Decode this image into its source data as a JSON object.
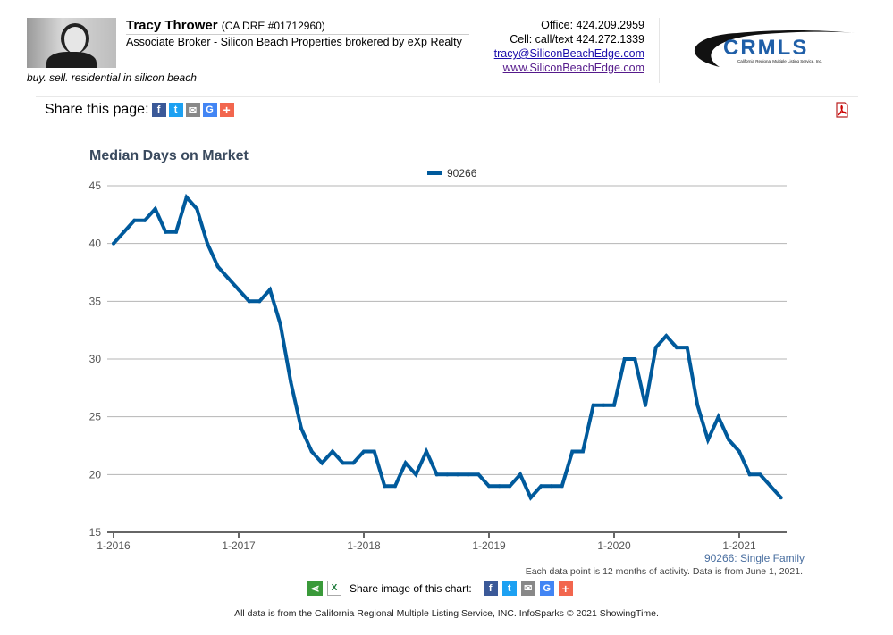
{
  "agent": {
    "name": "Tracy Thrower",
    "license": "(CA DRE #01712960)",
    "title": "Associate Broker - Silicon Beach Properties brokered by eXp Realty",
    "tagline": "buy. sell. residential in silicon beach",
    "office": "Office: 424.209.2959",
    "cell": "Cell: call/text 424.272.1339",
    "email": "tracy@SiliconBeachEdge.com",
    "website": "www.SiliconBeachEdge.com"
  },
  "logo": {
    "text": "CRMLS",
    "subtext": "California Regional Multiple Listing Service, Inc."
  },
  "share_page": {
    "label": "Share this page:",
    "buttons": [
      "facebook",
      "twitter",
      "email",
      "google",
      "more"
    ]
  },
  "colors": {
    "line": "#005a9c",
    "facebook": "#3b5998",
    "twitter": "#1da1f2",
    "email": "#888888",
    "google": "#4285f4",
    "more": "#f2664e"
  },
  "chart_data": {
    "type": "line",
    "title": "Median Days on Market",
    "legend": [
      "90266"
    ],
    "legend_position": "top-center",
    "ylim": [
      15,
      45
    ],
    "yticks": [
      15,
      20,
      25,
      30,
      35,
      40,
      45
    ],
    "xticks": [
      "1-2016",
      "1-2017",
      "1-2018",
      "1-2019",
      "1-2020",
      "1-2021"
    ],
    "x_start": "1-2016",
    "x_interval": "monthly",
    "series": [
      {
        "name": "90266",
        "values": [
          40,
          41,
          42,
          42,
          43,
          41,
          41,
          44,
          43,
          40,
          38,
          37,
          36,
          35,
          35,
          36,
          33,
          28,
          24,
          22,
          21,
          22,
          21,
          21,
          22,
          22,
          19,
          19,
          21,
          20,
          22,
          20,
          20,
          20,
          20,
          20,
          19,
          19,
          19,
          20,
          18,
          19,
          19,
          19,
          22,
          22,
          26,
          26,
          26,
          30,
          30,
          26,
          31,
          32,
          31,
          31,
          26,
          23,
          25,
          23,
          22,
          20,
          20,
          19,
          18
        ]
      }
    ],
    "grid": true
  },
  "series_note": "90266: Single Family",
  "data_note": "Each data point is 12 months of activity. Data is from June 1, 2021.",
  "share_chart_label": "Share image of this chart:",
  "footer": "All data is from the California Regional Multiple Listing Service, INC. InfoSparks © 2021 ShowingTime."
}
